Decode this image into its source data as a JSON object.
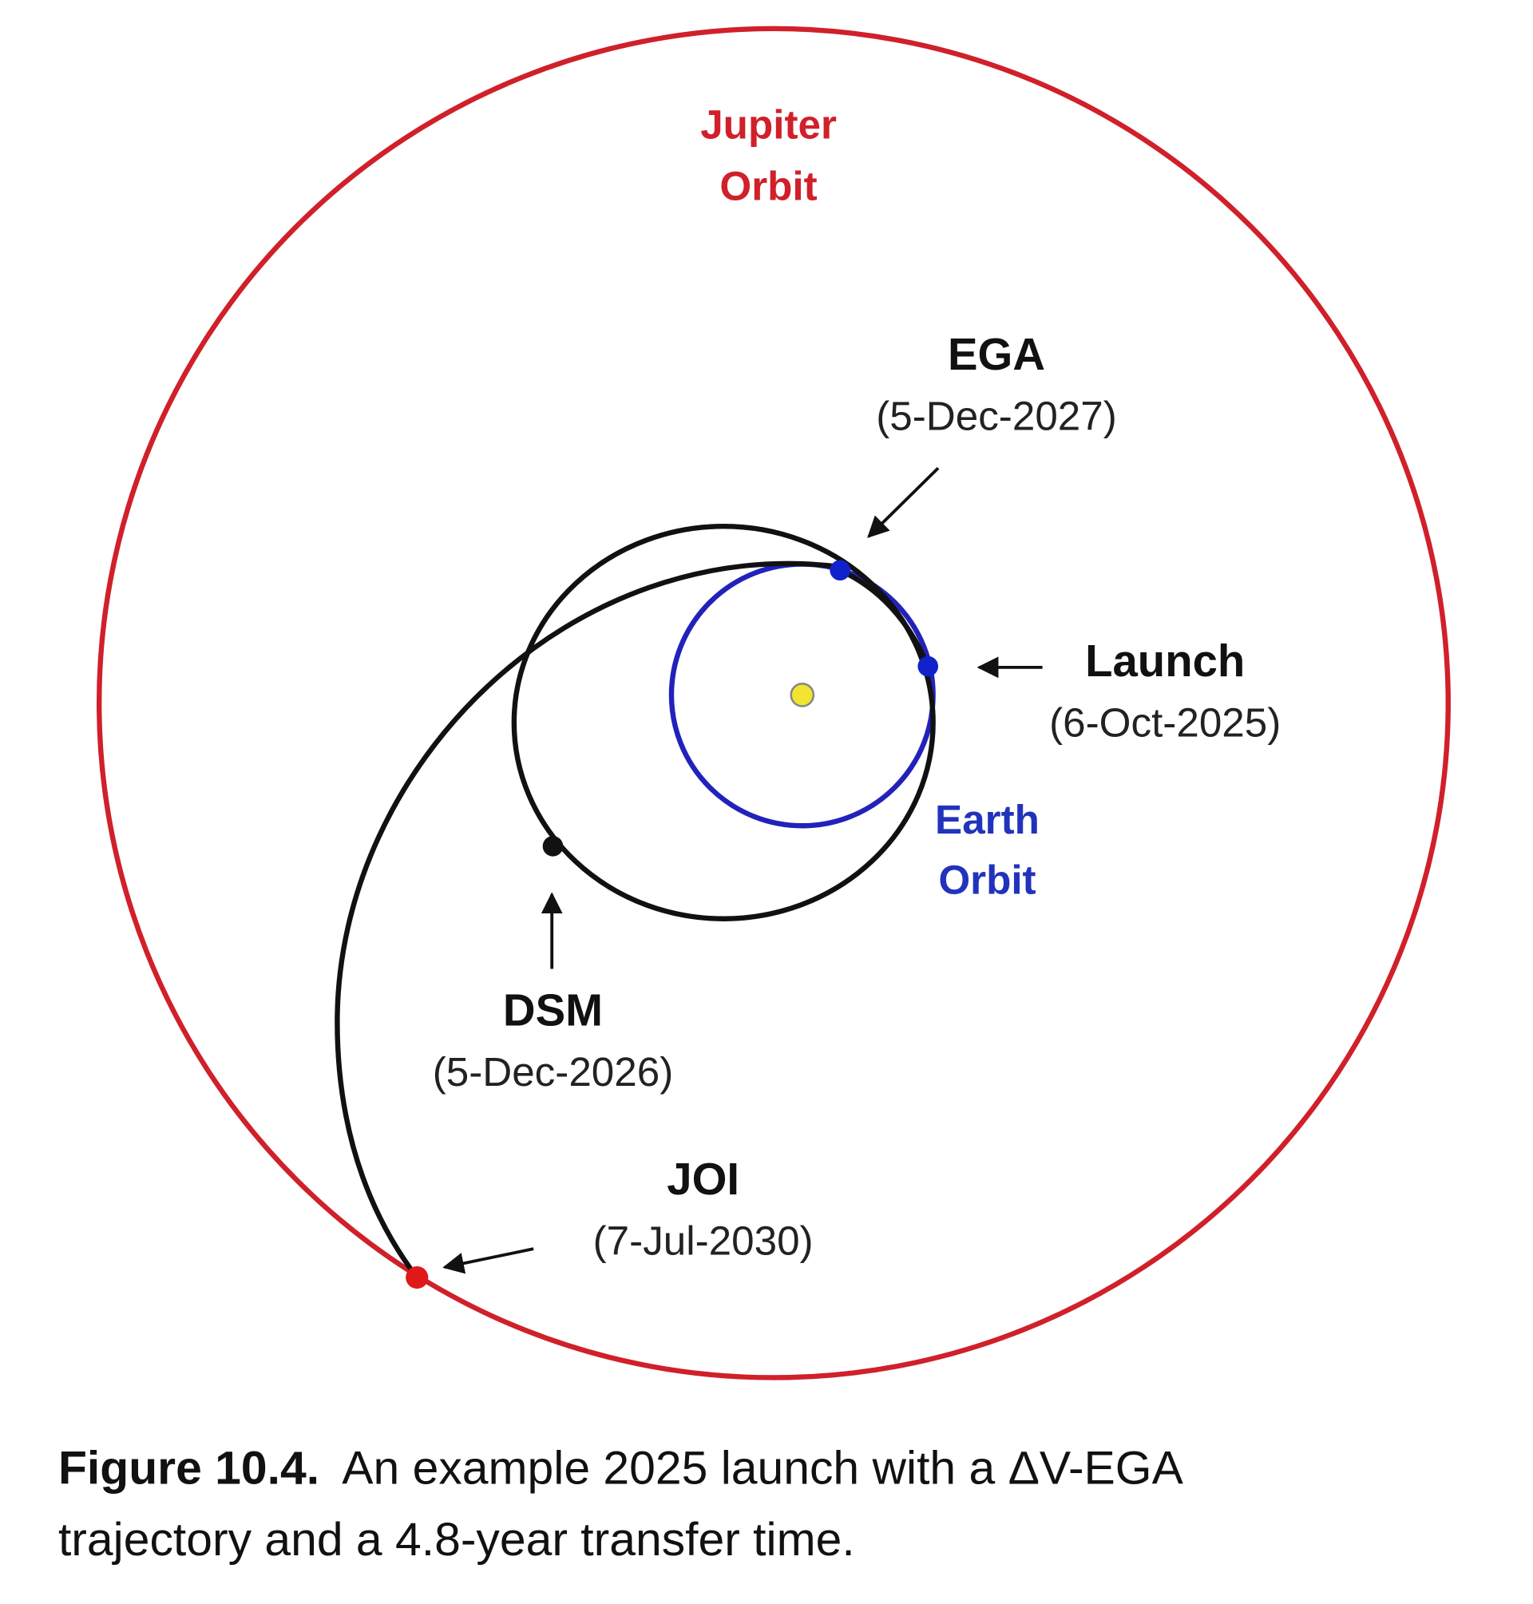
{
  "diagram": {
    "jupiter_label": [
      "Jupiter",
      "Orbit"
    ],
    "earth_label": [
      "Earth",
      "Orbit"
    ],
    "events": [
      {
        "name": "EGA",
        "date": "(5-Dec-2027)"
      },
      {
        "name": "Launch",
        "date": "(6-Oct-2025)"
      },
      {
        "name": "DSM",
        "date": "(5-Dec-2026)"
      },
      {
        "name": "JOI",
        "date": "(7-Jul-2030)"
      }
    ]
  },
  "caption": {
    "label": "Figure 10.4.",
    "lines": [
      "An example 2025 launch with a ΔV-EGA",
      "trajectory and a 4.8-year transfer time."
    ]
  }
}
